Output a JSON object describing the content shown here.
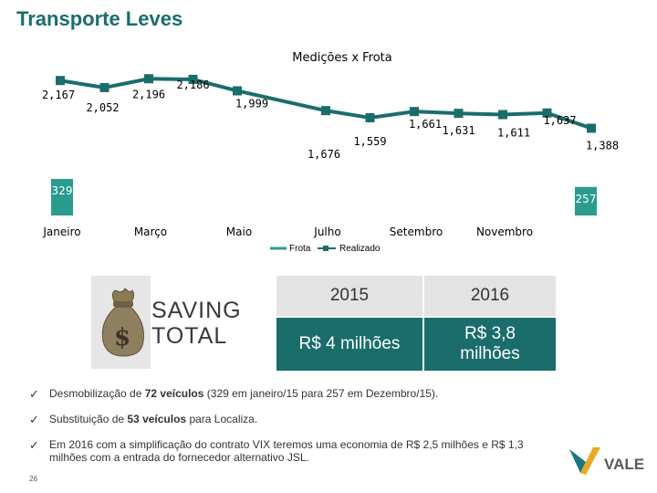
{
  "slide_title": "Transporte Leves",
  "page_number": "26",
  "chart_data": {
    "type": "line",
    "title": "Medições x Frota",
    "x_tick_labels": [
      "Janeiro",
      "Março",
      "Maio",
      "Julho",
      "Setembro",
      "Novembro"
    ],
    "series": [
      {
        "name": "Realizado",
        "kind": "line",
        "color": "#1b6d6c",
        "values": [
          2167,
          2052,
          2196,
          2186,
          1999,
          null,
          1676,
          1559,
          1661,
          1631,
          1611,
          1637,
          1388
        ],
        "labels": [
          "2,167",
          "2,052",
          "2,196",
          "2,186",
          "1,999",
          "",
          "1,676",
          "1,559",
          "1,661",
          "1,631",
          "1,611",
          "1,637",
          "1,388"
        ]
      },
      {
        "name": "Frota",
        "kind": "bar",
        "color": "#2a9b8f",
        "values": [
          329,
          257
        ],
        "labels": [
          "329",
          "257"
        ],
        "positions": [
          "first",
          "last"
        ]
      }
    ]
  },
  "saving": {
    "label_line1": "SAVING",
    "label_line2": "TOTAL",
    "icon": "money-bag-icon"
  },
  "savings_table": {
    "headers": [
      "2015",
      "2016"
    ],
    "values": [
      "R$ 4 milhões",
      "R$ 3,8 milhões"
    ]
  },
  "bullets": [
    {
      "pre": "Desmobilização de ",
      "bold": "72 veículos",
      "post": " (329 em janeiro/15 para 257 em Dezembro/15)."
    },
    {
      "pre": "Substituição de ",
      "bold": "53 veículos",
      "post": " para Localiza."
    },
    {
      "pre": "Em 2016 com a simplificação do contrato VIX teremos uma economia de R$ 2,5 milhões e R$ 1,3 milhões com a entrada do fornecedor alternativo JSL.",
      "bold": "",
      "post": ""
    }
  ],
  "logo_text": "VALE",
  "colors": {
    "title": "#1a6d6f",
    "line": "#1b6d6c",
    "bar": "#2a9b8f",
    "table_value_bg": "#1b6d6c",
    "table_header_bg": "#e3e3e3"
  }
}
